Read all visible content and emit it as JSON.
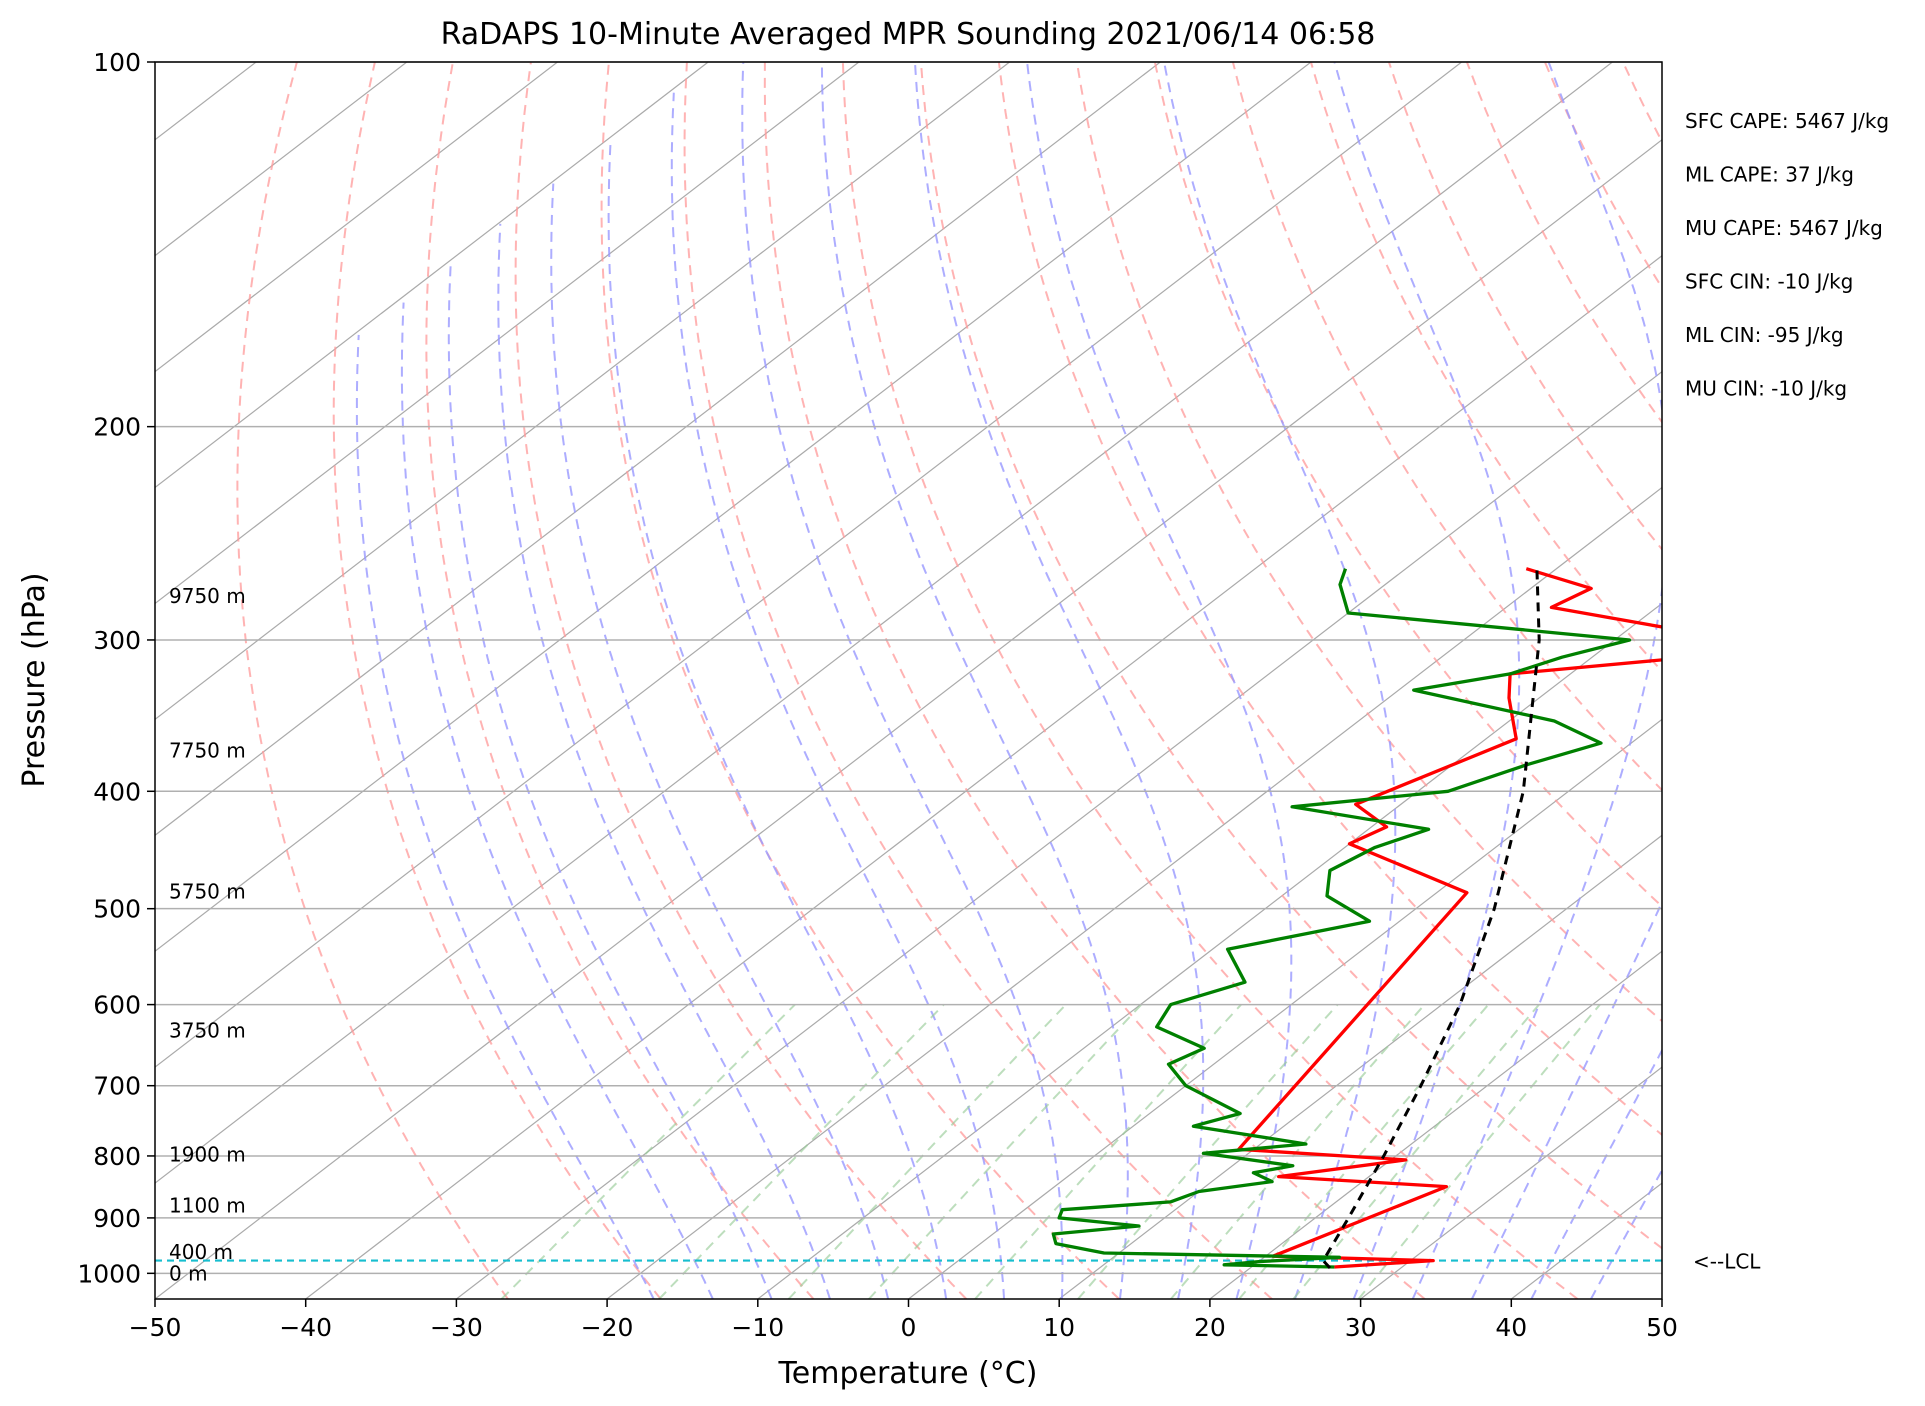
{
  "chart_data": {
    "type": "line",
    "title": "RaDAPS 10-Minute Averaged MPR Sounding 2021/06/14 06:58",
    "xlabel": "Temperature (°C)",
    "ylabel": "Pressure (hPa)",
    "xlim": [
      -50,
      50
    ],
    "ylim": [
      1050,
      100
    ],
    "yscale": "log",
    "x_ticks": [
      -50,
      -40,
      -30,
      -20,
      -10,
      0,
      10,
      20,
      30,
      40,
      50
    ],
    "x_tick_labels": [
      "−50",
      "−40",
      "−30",
      "−20",
      "−10",
      "0",
      "10",
      "20",
      "30",
      "40",
      "50"
    ],
    "y_ticks": [
      100,
      200,
      300,
      400,
      500,
      600,
      700,
      800,
      900,
      1000
    ],
    "y_tick_labels": [
      "100",
      "200",
      "300",
      "400",
      "500",
      "600",
      "700",
      "800",
      "900",
      "1000"
    ],
    "grid": true,
    "series": [
      {
        "role": "temperature",
        "color": "#ff0000",
        "points": [
          {
            "p": 988,
            "t": 25.5
          },
          {
            "p": 976,
            "t": 31.5
          },
          {
            "p": 968,
            "t": 20.5
          },
          {
            "p": 848,
            "t": 26
          },
          {
            "p": 832,
            "t": 14
          },
          {
            "p": 806,
            "t": 21
          },
          {
            "p": 790,
            "t": 9
          },
          {
            "p": 485,
            "t": 2
          },
          {
            "p": 442,
            "t": -10
          },
          {
            "p": 428,
            "t": -9
          },
          {
            "p": 410,
            "t": -13
          },
          {
            "p": 362,
            "t": -8
          },
          {
            "p": 335,
            "t": -12
          },
          {
            "p": 320,
            "t": -14
          },
          {
            "p": 305,
            "t": 2
          },
          {
            "p": 282,
            "t": -17
          },
          {
            "p": 272,
            "t": -16
          },
          {
            "p": 262,
            "t": -22
          }
        ]
      },
      {
        "role": "dewpoint",
        "color": "#008000",
        "points": [
          {
            "p": 988,
            "t": 25.5
          },
          {
            "p": 984,
            "t": 18
          },
          {
            "p": 978,
            "t": 20
          },
          {
            "p": 970,
            "t": 25
          },
          {
            "p": 962,
            "t": 9
          },
          {
            "p": 945,
            "t": 5
          },
          {
            "p": 928,
            "t": 4
          },
          {
            "p": 914,
            "t": 9
          },
          {
            "p": 900,
            "t": 3
          },
          {
            "p": 886,
            "t": 2.5
          },
          {
            "p": 873,
            "t": 9
          },
          {
            "p": 856,
            "t": 10
          },
          {
            "p": 840,
            "t": 14
          },
          {
            "p": 826,
            "t": 12
          },
          {
            "p": 815,
            "t": 14
          },
          {
            "p": 796,
            "t": 7
          },
          {
            "p": 782,
            "t": 13
          },
          {
            "p": 756,
            "t": 4
          },
          {
            "p": 738,
            "t": 6
          },
          {
            "p": 700,
            "t": 0
          },
          {
            "p": 672,
            "t": -3
          },
          {
            "p": 652,
            "t": -2
          },
          {
            "p": 626,
            "t": -7
          },
          {
            "p": 600,
            "t": -8
          },
          {
            "p": 575,
            "t": -5
          },
          {
            "p": 540,
            "t": -9
          },
          {
            "p": 512,
            "t": -2
          },
          {
            "p": 488,
            "t": -7
          },
          {
            "p": 465,
            "t": -9
          },
          {
            "p": 445,
            "t": -8
          },
          {
            "p": 430,
            "t": -6
          },
          {
            "p": 412,
            "t": -17
          },
          {
            "p": 400,
            "t": -8
          },
          {
            "p": 380,
            "t": -5
          },
          {
            "p": 365,
            "t": -2
          },
          {
            "p": 350,
            "t": -7
          },
          {
            "p": 330,
            "t": -19
          },
          {
            "p": 320,
            "t": -14
          },
          {
            "p": 310,
            "t": -12
          },
          {
            "p": 300,
            "t": -9
          },
          {
            "p": 285,
            "t": -30
          },
          {
            "p": 270,
            "t": -33
          },
          {
            "p": 262,
            "t": -34
          }
        ]
      },
      {
        "role": "parcel",
        "color": "#000000",
        "dashed": true,
        "points": [
          {
            "p": 990,
            "t": 25.3
          },
          {
            "p": 976,
            "t": 24.2
          },
          {
            "p": 900,
            "t": 22.2
          },
          {
            "p": 800,
            "t": 19.2
          },
          {
            "p": 700,
            "t": 15.6
          },
          {
            "p": 600,
            "t": 11.2
          },
          {
            "p": 500,
            "t": 5.2
          },
          {
            "p": 400,
            "t": -3
          },
          {
            "p": 300,
            "t": -15
          },
          {
            "p": 262,
            "t": -21.3
          }
        ]
      }
    ],
    "height_labels": [
      {
        "label": "9750 m",
        "p": 276
      },
      {
        "label": "7750 m",
        "p": 370
      },
      {
        "label": "5750 m",
        "p": 484
      },
      {
        "label": "3750 m",
        "p": 630
      },
      {
        "label": "1900 m",
        "p": 798
      },
      {
        "label": "1100 m",
        "p": 879
      },
      {
        "label": "400 m",
        "p": 960
      },
      {
        "label": "0 m",
        "p": 1000
      }
    ],
    "lcl": {
      "p": 976,
      "label": "<--LCL",
      "color": "#17becf"
    },
    "indices": [
      "SFC CAPE: 5467 J/kg",
      "ML CAPE: 37 J/kg",
      "MU CAPE: 5467 J/kg",
      "SFC CIN: -10 J/kg",
      "ML CIN: -95 J/kg",
      "MU CIN: -10 J/kg"
    ],
    "background_lines": {
      "isotherms": {
        "color": "#aaaaaa",
        "style": "solid"
      },
      "dry_adiabats": {
        "color": "#ff9999",
        "style": "dashed"
      },
      "moist_adiabats": {
        "color": "#9999ff",
        "style": "dashed"
      },
      "mixing_ratio": {
        "color": "#99cc99",
        "style": "dashed"
      }
    }
  }
}
